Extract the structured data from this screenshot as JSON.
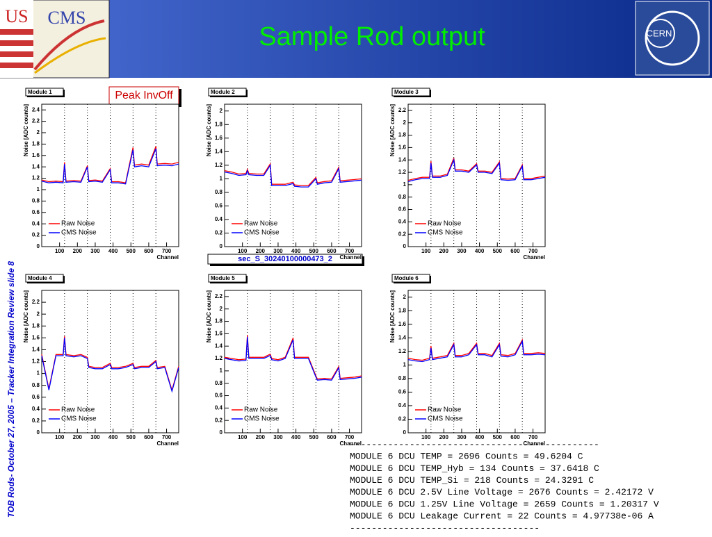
{
  "header": {
    "title": "Sample Rod output",
    "logo_us": "US",
    "logo_cms": "CMS",
    "logo_cern": "CERN"
  },
  "side_text": "TOB Rods- October 27, 2005 – Tracker Integration Review  slide 8",
  "annotations": {
    "peak": "Peak InvOff",
    "sector": "sec_S_30240100000473_2"
  },
  "console": {
    "lines": [
      "----------------------------------------------",
      "MODULE 6 DCU TEMP = 2696 Counts = 49.6204 C",
      "MODULE 6 DCU TEMP_Hyb = 134 Counts = 37.6418 C",
      "MODULE 6 DCU TEMP_Si = 218 Counts = 24.3291 C",
      "MODULE 6 DCU 2.5V Line Voltage = 2676 Counts = 2.42172 V",
      "MODULE 6 DCU 1.25V Line Voltage = 2659 Counts = 1.20317 V",
      "MODULE 6 DCU Leakage Current = 22 Counts = 4.97738e-06 A",
      "-----------------------------------"
    ]
  },
  "chart_data": [
    {
      "type": "line",
      "title": "Module 1",
      "xlabel": "Channel",
      "ylabel": "Noise [ADC counts]",
      "boundaries": [
        128,
        256,
        384,
        512,
        640
      ],
      "x": [
        0,
        40,
        80,
        120,
        128,
        136,
        180,
        220,
        256,
        264,
        300,
        340,
        384,
        392,
        430,
        470,
        512,
        520,
        560,
        600,
        640,
        648,
        690,
        730,
        768
      ],
      "series": [
        {
          "name": "Raw Noise",
          "color": "#ff0000",
          "values": [
            1.17,
            1.14,
            1.15,
            1.14,
            1.48,
            1.15,
            1.16,
            1.15,
            1.42,
            1.16,
            1.17,
            1.15,
            1.37,
            1.14,
            1.14,
            1.12,
            1.74,
            1.43,
            1.45,
            1.43,
            1.76,
            1.45,
            1.46,
            1.45,
            1.48
          ]
        },
        {
          "name": "CMS Noise",
          "color": "#0000ff",
          "values": [
            1.15,
            1.12,
            1.13,
            1.12,
            1.45,
            1.13,
            1.14,
            1.13,
            1.4,
            1.14,
            1.15,
            1.13,
            1.35,
            1.12,
            1.12,
            1.1,
            1.7,
            1.4,
            1.42,
            1.4,
            1.72,
            1.42,
            1.43,
            1.42,
            1.45
          ]
        }
      ],
      "xlim": [
        0,
        768
      ],
      "xticks": [
        100,
        200,
        300,
        400,
        500,
        600,
        700
      ],
      "ylim": [
        0,
        2.5
      ],
      "yticks": [
        0,
        0.2,
        0.4,
        0.6,
        0.8,
        1,
        1.2,
        1.4,
        1.6,
        1.8,
        2,
        2.2,
        2.4
      ]
    },
    {
      "type": "line",
      "title": "Module 2",
      "xlabel": "Channel",
      "ylabel": "Noise [ADC counts]",
      "boundaries": [
        128,
        256,
        384,
        512,
        640
      ],
      "x": [
        0,
        40,
        80,
        120,
        128,
        136,
        180,
        220,
        256,
        264,
        300,
        340,
        384,
        392,
        430,
        470,
        512,
        520,
        560,
        600,
        640,
        648,
        690,
        730,
        768
      ],
      "series": [
        {
          "name": "Raw Noise",
          "color": "#ff0000",
          "values": [
            1.12,
            1.1,
            1.07,
            1.08,
            1.14,
            1.08,
            1.07,
            1.07,
            1.22,
            0.92,
            0.92,
            0.92,
            0.95,
            0.91,
            0.9,
            0.9,
            1.02,
            0.94,
            0.96,
            0.97,
            1.17,
            0.97,
            0.98,
            0.99,
            1
          ]
        },
        {
          "name": "CMS Noise",
          "color": "#0000ff",
          "values": [
            1.1,
            1.08,
            1.05,
            1.06,
            1.12,
            1.06,
            1.05,
            1.05,
            1.2,
            0.9,
            0.9,
            0.9,
            0.93,
            0.89,
            0.88,
            0.88,
            1,
            0.92,
            0.94,
            0.95,
            1.15,
            0.95,
            0.96,
            0.97,
            0.98
          ]
        }
      ],
      "xlim": [
        0,
        768
      ],
      "xticks": [
        100,
        200,
        300,
        400,
        500,
        600,
        700
      ],
      "ylim": [
        0,
        2.1
      ],
      "yticks": [
        0,
        0.2,
        0.4,
        0.6,
        0.8,
        1,
        1.2,
        1.4,
        1.6,
        1.8,
        2
      ]
    },
    {
      "type": "line",
      "title": "Module 3",
      "xlabel": "Channel",
      "ylabel": "Noise [ADC counts]",
      "boundaries": [
        128,
        256,
        384,
        512,
        640
      ],
      "x": [
        0,
        40,
        80,
        120,
        128,
        136,
        180,
        220,
        256,
        264,
        300,
        340,
        384,
        392,
        430,
        470,
        512,
        520,
        560,
        600,
        640,
        648,
        690,
        730,
        768
      ],
      "series": [
        {
          "name": "Raw Noise",
          "color": "#ff0000",
          "values": [
            1.07,
            1.1,
            1.12,
            1.12,
            1.38,
            1.14,
            1.14,
            1.17,
            1.43,
            1.24,
            1.24,
            1.22,
            1.34,
            1.22,
            1.22,
            1.2,
            1.37,
            1.1,
            1.09,
            1.1,
            1.32,
            1.1,
            1.1,
            1.12,
            1.14
          ]
        },
        {
          "name": "CMS Noise",
          "color": "#0000ff",
          "values": [
            1.05,
            1.08,
            1.1,
            1.1,
            1.35,
            1.12,
            1.12,
            1.15,
            1.4,
            1.22,
            1.22,
            1.2,
            1.32,
            1.2,
            1.2,
            1.18,
            1.35,
            1.08,
            1.07,
            1.08,
            1.3,
            1.08,
            1.08,
            1.1,
            1.12
          ]
        }
      ],
      "xlim": [
        0,
        768
      ],
      "xticks": [
        100,
        200,
        300,
        400,
        500,
        600,
        700
      ],
      "ylim": [
        0,
        2.3
      ],
      "yticks": [
        0,
        0.2,
        0.4,
        0.6,
        0.8,
        1,
        1.2,
        1.4,
        1.6,
        1.8,
        2,
        2.2
      ]
    },
    {
      "type": "line",
      "title": "Module 4",
      "xlabel": "Channel",
      "ylabel": "Noise [ADC counts]",
      "boundaries": [
        128,
        256,
        384,
        512,
        640
      ],
      "x": [
        0,
        40,
        80,
        120,
        128,
        136,
        180,
        220,
        256,
        264,
        300,
        340,
        384,
        392,
        430,
        470,
        512,
        520,
        560,
        600,
        640,
        648,
        690,
        730,
        768
      ],
      "series": [
        {
          "name": "Raw Noise",
          "color": "#ff0000",
          "values": [
            1.32,
            0.74,
            1.32,
            1.32,
            1.63,
            1.32,
            1.3,
            1.32,
            1.27,
            1.12,
            1.1,
            1.1,
            1.17,
            1.1,
            1.1,
            1.12,
            1.17,
            1.1,
            1.12,
            1.12,
            1.22,
            1.1,
            1.12,
            0.72,
            1.12
          ]
        },
        {
          "name": "CMS Noise",
          "color": "#0000ff",
          "values": [
            1.3,
            0.72,
            1.3,
            1.3,
            1.6,
            1.3,
            1.28,
            1.3,
            1.25,
            1.1,
            1.08,
            1.08,
            1.15,
            1.08,
            1.08,
            1.1,
            1.15,
            1.08,
            1.1,
            1.1,
            1.2,
            1.08,
            1.1,
            0.7,
            1.1
          ]
        }
      ],
      "xlim": [
        0,
        768
      ],
      "xticks": [
        100,
        200,
        300,
        400,
        500,
        600,
        700
      ],
      "ylim": [
        0,
        2.4
      ],
      "yticks": [
        0,
        0.2,
        0.4,
        0.6,
        0.8,
        1,
        1.2,
        1.4,
        1.6,
        1.8,
        2,
        2.2
      ]
    },
    {
      "type": "line",
      "title": "Module 5",
      "xlabel": "Channel",
      "ylabel": "Noise [ADC counts]",
      "boundaries": [
        128,
        256,
        384,
        512,
        640
      ],
      "x": [
        0,
        40,
        80,
        120,
        128,
        136,
        180,
        220,
        256,
        264,
        300,
        340,
        384,
        392,
        430,
        470,
        512,
        520,
        560,
        600,
        640,
        648,
        690,
        730,
        768
      ],
      "series": [
        {
          "name": "Raw Noise",
          "color": "#ff0000",
          "values": [
            1.22,
            1.2,
            1.18,
            1.19,
            1.58,
            1.22,
            1.22,
            1.22,
            1.27,
            1.2,
            1.18,
            1.22,
            1.53,
            1.22,
            1.22,
            1.22,
            0.92,
            0.87,
            0.88,
            0.87,
            1.07,
            0.88,
            0.89,
            0.9,
            0.92
          ]
        },
        {
          "name": "CMS Noise",
          "color": "#0000ff",
          "values": [
            1.2,
            1.18,
            1.16,
            1.17,
            1.55,
            1.2,
            1.2,
            1.2,
            1.25,
            1.18,
            1.16,
            1.2,
            1.5,
            1.2,
            1.2,
            1.2,
            0.9,
            0.85,
            0.86,
            0.85,
            1.05,
            0.86,
            0.87,
            0.88,
            0.9
          ]
        }
      ],
      "xlim": [
        0,
        768
      ],
      "xticks": [
        100,
        200,
        300,
        400,
        500,
        600,
        700
      ],
      "ylim": [
        0,
        2.3
      ],
      "yticks": [
        0,
        0.2,
        0.4,
        0.6,
        0.8,
        1,
        1.2,
        1.4,
        1.6,
        1.8,
        2,
        2.2
      ]
    },
    {
      "type": "line",
      "title": "Module 6",
      "xlabel": "Channel",
      "ylabel": "Noise [ADC counts]",
      "boundaries": [
        128,
        256,
        384,
        512,
        640
      ],
      "x": [
        0,
        40,
        80,
        120,
        128,
        136,
        180,
        220,
        256,
        264,
        300,
        340,
        384,
        392,
        430,
        470,
        512,
        520,
        560,
        600,
        640,
        648,
        690,
        730,
        768
      ],
      "series": [
        {
          "name": "Raw Noise",
          "color": "#ff0000",
          "values": [
            1.1,
            1.08,
            1.07,
            1.1,
            1.28,
            1.1,
            1.12,
            1.14,
            1.32,
            1.14,
            1.14,
            1.17,
            1.32,
            1.17,
            1.17,
            1.14,
            1.32,
            1.15,
            1.14,
            1.17,
            1.37,
            1.17,
            1.17,
            1.18,
            1.17
          ]
        },
        {
          "name": "CMS Noise",
          "color": "#0000ff",
          "values": [
            1.08,
            1.06,
            1.05,
            1.08,
            1.25,
            1.08,
            1.1,
            1.12,
            1.3,
            1.12,
            1.12,
            1.15,
            1.3,
            1.15,
            1.15,
            1.12,
            1.3,
            1.13,
            1.12,
            1.15,
            1.35,
            1.15,
            1.15,
            1.16,
            1.15
          ]
        }
      ],
      "xlim": [
        0,
        768
      ],
      "xticks": [
        100,
        200,
        300,
        400,
        500,
        600,
        700
      ],
      "ylim": [
        0,
        2.1
      ],
      "yticks": [
        0,
        0.2,
        0.4,
        0.6,
        0.8,
        1,
        1.2,
        1.4,
        1.6,
        1.8,
        2
      ]
    }
  ]
}
